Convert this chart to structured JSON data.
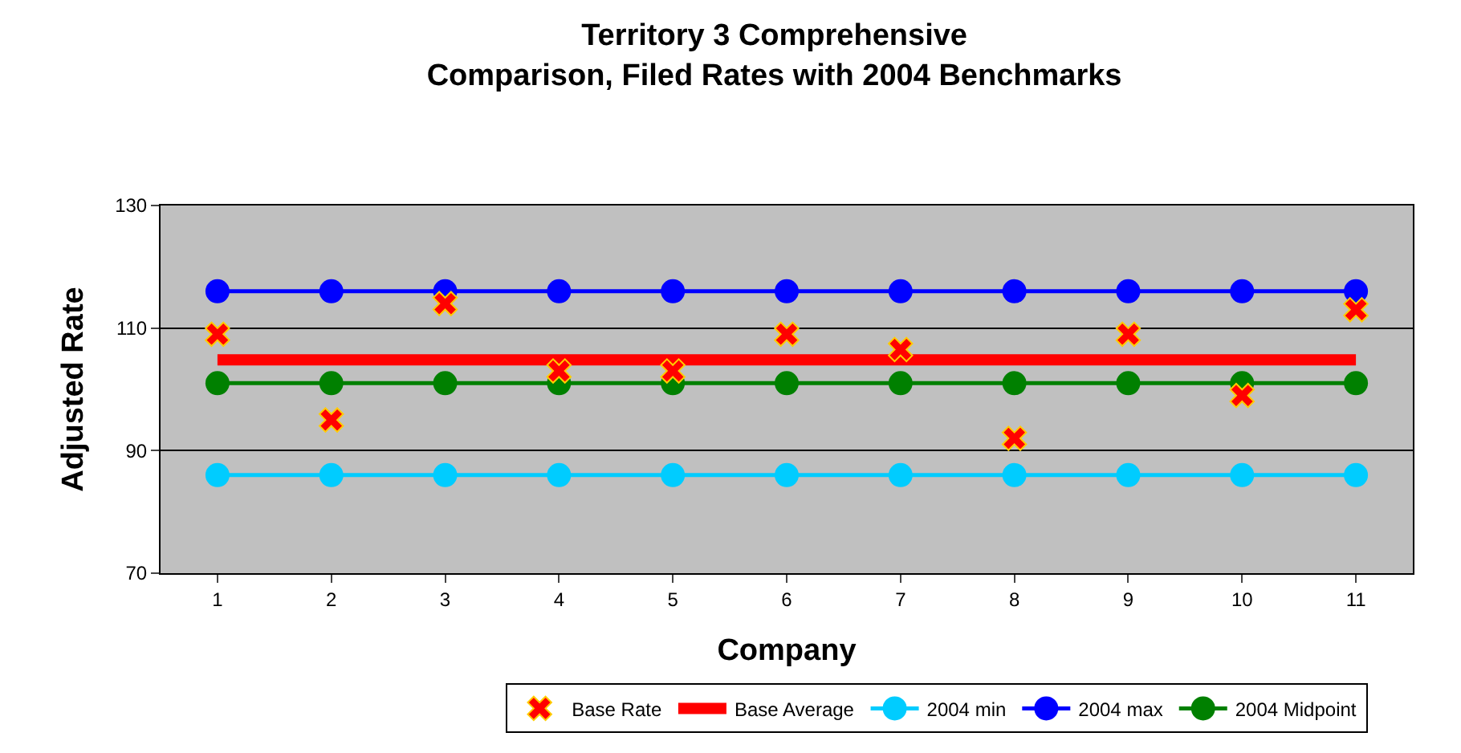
{
  "chart_data": {
    "type": "line",
    "title": "Territory 3 Comprehensive\nComparison, Filed Rates with 2004 Benchmarks",
    "xlabel": "Company",
    "ylabel": "Adjusted Rate",
    "categories": [
      "1",
      "2",
      "3",
      "4",
      "5",
      "6",
      "7",
      "8",
      "9",
      "10",
      "11"
    ],
    "ylim": [
      70,
      130
    ],
    "yticks": [
      70,
      90,
      110,
      130
    ],
    "grid": "y",
    "legend": "bottom",
    "series": [
      {
        "name": "Base Rate",
        "type": "scatter",
        "marker": "cross",
        "color": "#ff0000",
        "values": [
          109,
          95,
          114,
          103,
          103,
          109,
          106.5,
          92,
          109,
          99,
          113
        ]
      },
      {
        "name": "Base Average",
        "marker": "none",
        "color": "#ff0000",
        "values": [
          104.8,
          104.8,
          104.8,
          104.8,
          104.8,
          104.8,
          104.8,
          104.8,
          104.8,
          104.8,
          104.8
        ]
      },
      {
        "name": "2004 min",
        "marker": "circle",
        "color": "#00ccff",
        "values": [
          86,
          86,
          86,
          86,
          86,
          86,
          86,
          86,
          86,
          86,
          86
        ]
      },
      {
        "name": "2004 max",
        "marker": "circle",
        "color": "#0000ff",
        "values": [
          116,
          116,
          116,
          116,
          116,
          116,
          116,
          116,
          116,
          116,
          116
        ]
      },
      {
        "name": "2004 Midpoint",
        "marker": "circle",
        "color": "#008000",
        "values": [
          101,
          101,
          101,
          101,
          101,
          101,
          101,
          101,
          101,
          101,
          101
        ]
      }
    ]
  }
}
